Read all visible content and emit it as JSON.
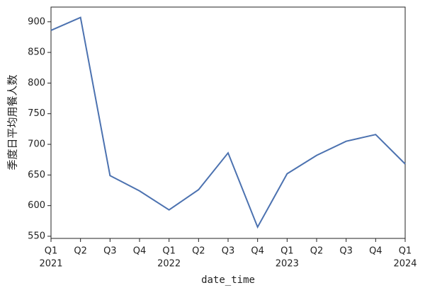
{
  "chart_data": {
    "type": "line",
    "y_label": "季度日平均用餐人数",
    "x_label": "date_time",
    "categories": [
      "Q1",
      "Q2",
      "Q3",
      "Q4",
      "Q1",
      "Q2",
      "Q3",
      "Q4",
      "Q1",
      "Q2",
      "Q3",
      "Q4",
      "Q1"
    ],
    "years": [
      "2021",
      null,
      null,
      null,
      "2022",
      null,
      null,
      null,
      "2023",
      null,
      null,
      null,
      "2024"
    ],
    "series": [
      {
        "color": "#4c72b0",
        "values": [
          886,
          907,
          649,
          624,
          593,
          626,
          686,
          565,
          652,
          682,
          705,
          716,
          668
        ]
      }
    ],
    "ylim": [
      546.5,
      924
    ],
    "yticks": [
      550,
      600,
      650,
      700,
      750,
      800,
      850,
      900
    ],
    "grid": false
  }
}
